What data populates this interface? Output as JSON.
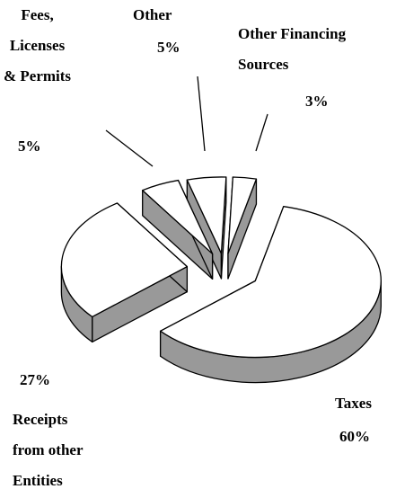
{
  "chart_data": {
    "type": "pie",
    "categories": [
      "Taxes",
      "Receipts\nfrom other\nEntities",
      "Fees,\nLicenses\n& Permits",
      "Other",
      "Other Financing\nSources"
    ],
    "values": [
      60,
      27,
      5,
      5,
      3
    ],
    "value_labels": [
      "60%",
      "27%",
      "5%",
      "5%",
      "3%"
    ],
    "top_color": "#ffffff",
    "side_color": "#999999"
  }
}
